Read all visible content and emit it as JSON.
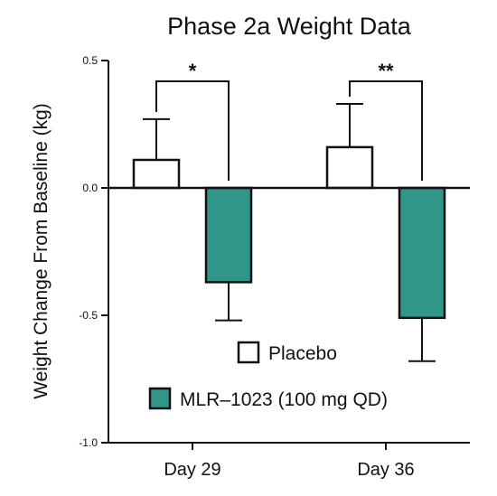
{
  "chart_data": {
    "type": "bar",
    "title": "Phase 2a Weight Data",
    "xlabel": "",
    "ylabel": "Weight Change From Baseline (kg)",
    "ylim": [
      -1.0,
      0.5
    ],
    "yticks": [
      "0.5",
      "0.0",
      "-0.5",
      "-1.0"
    ],
    "categories": [
      "Day 29",
      "Day 36"
    ],
    "series": [
      {
        "name": "Placebo",
        "values": [
          0.11,
          0.16
        ],
        "error": [
          0.16,
          0.17
        ],
        "fill": "#ffffff",
        "stroke": "#111111"
      },
      {
        "name": "MLR–1023 (100 mg QD)",
        "values": [
          -0.37,
          -0.51
        ],
        "error": [
          0.15,
          0.17
        ],
        "fill": "#2f9689",
        "stroke": "#111111"
      }
    ],
    "significance": [
      "*",
      "**"
    ],
    "legend": {
      "placement": "lower-right",
      "items": [
        "Placebo",
        "MLR–1023 (100 mg QD)"
      ]
    },
    "grid": false
  }
}
